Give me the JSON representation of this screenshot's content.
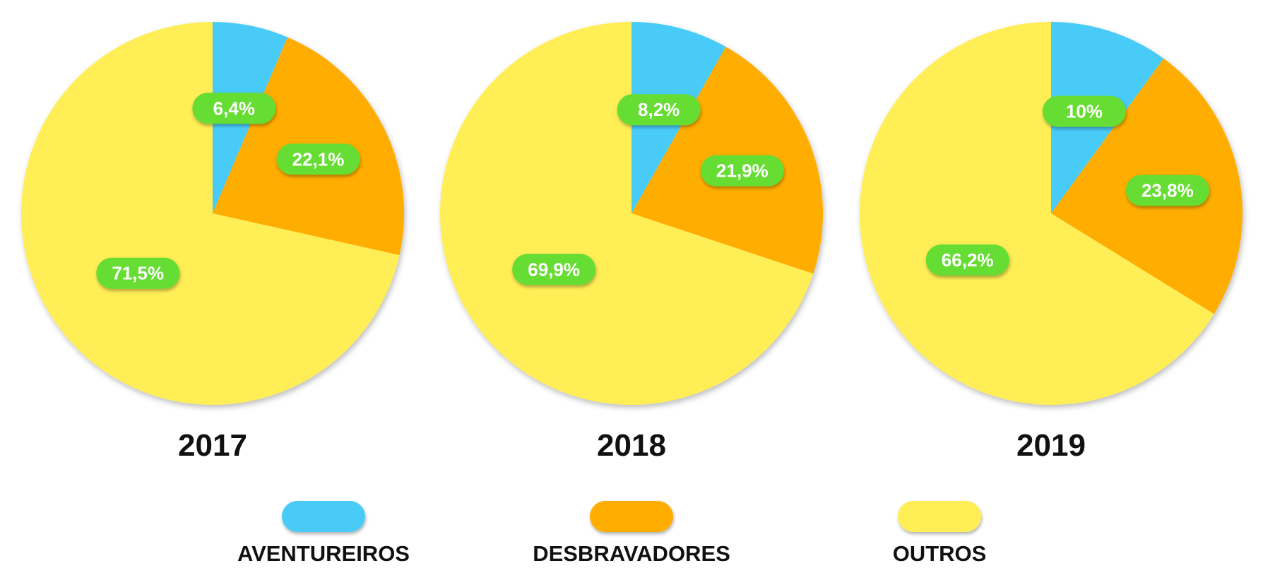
{
  "chart_data": {
    "type": "pie",
    "legend_placement": "bottom",
    "series": [
      {
        "name": "AVENTUREIROS",
        "color": "#4ACBF8"
      },
      {
        "name": "DESBRAVADORES",
        "color": "#FFAD01"
      },
      {
        "name": "OUTROS",
        "color": "#FFEE55"
      }
    ],
    "label_badge_color": "#66DD33",
    "charts": [
      {
        "title": "2017",
        "values": [
          6.4,
          22.1,
          71.5
        ],
        "labels": [
          "6,4%",
          "22,1%",
          "71,5%"
        ]
      },
      {
        "title": "2018",
        "values": [
          8.2,
          21.9,
          69.9
        ],
        "labels": [
          "8,2%",
          "21,9%",
          "69,9%"
        ]
      },
      {
        "title": "2019",
        "values": [
          10,
          23.8,
          66.2
        ],
        "labels": [
          "10%",
          "23,8%",
          "66,2%"
        ]
      }
    ]
  }
}
